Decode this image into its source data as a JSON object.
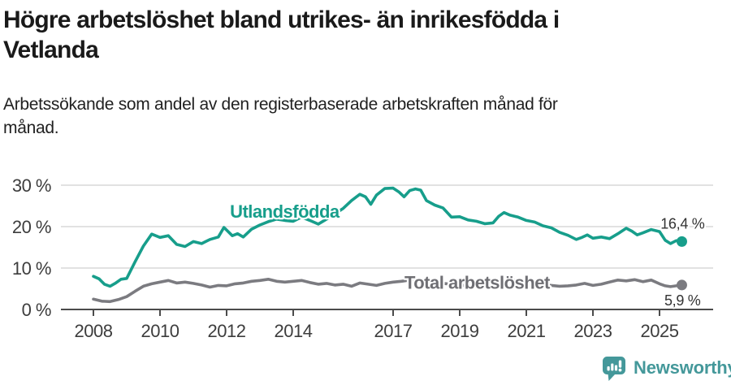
{
  "header": {
    "title_lines": {
      "l1": "Högre arbetslöshet bland utrikes- än inrikesfödda i",
      "l2": "Vetlanda"
    },
    "subtitle_lines": {
      "l1": "Arbetssökande som andel av den registerbaserade arbetskraften månad för",
      "l2": "månad."
    }
  },
  "chart_data": {
    "type": "line",
    "title": "Högre arbetslöshet bland utrikes- än inrikesfödda i Vetlanda",
    "subtitle": "Arbetssökande som andel av den registerbaserade arbetskraften månad för månad.",
    "xlabel": "",
    "ylabel": "",
    "x_axis": {
      "ticks": [
        2008,
        2010,
        2012,
        2014,
        2017,
        2019,
        2021,
        2023,
        2025
      ],
      "tick_labels": [
        "2008",
        "2010",
        "2012",
        "2014",
        "2017",
        "2019",
        "2021",
        "2023",
        "2025"
      ],
      "range": [
        2007.0,
        2026.6
      ]
    },
    "y_axis": {
      "ticks": [
        0,
        10,
        20,
        30
      ],
      "tick_labels": [
        "0 %",
        "10 %",
        "20 %",
        "30 %"
      ],
      "range": [
        0,
        33
      ],
      "grid": true
    },
    "grid_color": "#d9d9d9",
    "axis_color": "#4b4b4b",
    "tick_label_color": "#3d3d3d",
    "end_label_color": "#333333",
    "series": [
      {
        "name": "Utlandsfödda",
        "color": "#179e8b",
        "label_color": "#179e8b",
        "end_label": "16,4 %",
        "end_value": 16.4,
        "label_anchor": {
          "year": 2012.1,
          "value": 22.2
        },
        "points": [
          [
            2008.0,
            8.0
          ],
          [
            2008.17,
            7.4
          ],
          [
            2008.33,
            6.1
          ],
          [
            2008.5,
            5.6
          ],
          [
            2008.67,
            6.4
          ],
          [
            2008.83,
            7.3
          ],
          [
            2009.0,
            7.5
          ],
          [
            2009.25,
            11.5
          ],
          [
            2009.5,
            15.3
          ],
          [
            2009.75,
            18.2
          ],
          [
            2010.0,
            17.4
          ],
          [
            2010.25,
            17.8
          ],
          [
            2010.5,
            15.7
          ],
          [
            2010.75,
            15.2
          ],
          [
            2011.0,
            16.4
          ],
          [
            2011.25,
            15.9
          ],
          [
            2011.5,
            16.9
          ],
          [
            2011.75,
            17.5
          ],
          [
            2011.92,
            19.8
          ],
          [
            2012.17,
            17.8
          ],
          [
            2012.33,
            18.3
          ],
          [
            2012.5,
            17.5
          ],
          [
            2012.75,
            19.4
          ],
          [
            2013.0,
            20.4
          ],
          [
            2013.25,
            21.2
          ],
          [
            2013.5,
            21.8
          ],
          [
            2013.75,
            21.5
          ],
          [
            2014.0,
            21.3
          ],
          [
            2014.25,
            22.3
          ],
          [
            2014.5,
            21.5
          ],
          [
            2014.75,
            20.6
          ],
          [
            2015.0,
            21.8
          ],
          [
            2015.25,
            23.1
          ],
          [
            2015.5,
            24.4
          ],
          [
            2015.75,
            26.3
          ],
          [
            2016.0,
            27.8
          ],
          [
            2016.17,
            27.2
          ],
          [
            2016.33,
            25.4
          ],
          [
            2016.5,
            27.6
          ],
          [
            2016.75,
            29.2
          ],
          [
            2017.0,
            29.3
          ],
          [
            2017.17,
            28.4
          ],
          [
            2017.33,
            27.2
          ],
          [
            2017.5,
            28.7
          ],
          [
            2017.67,
            29.1
          ],
          [
            2017.83,
            28.8
          ],
          [
            2018.0,
            26.3
          ],
          [
            2018.25,
            25.2
          ],
          [
            2018.5,
            24.5
          ],
          [
            2018.75,
            22.3
          ],
          [
            2019.0,
            22.4
          ],
          [
            2019.25,
            21.6
          ],
          [
            2019.5,
            21.3
          ],
          [
            2019.75,
            20.7
          ],
          [
            2020.0,
            20.9
          ],
          [
            2020.17,
            22.5
          ],
          [
            2020.33,
            23.4
          ],
          [
            2020.5,
            22.8
          ],
          [
            2020.75,
            22.3
          ],
          [
            2021.0,
            21.5
          ],
          [
            2021.25,
            21.1
          ],
          [
            2021.5,
            20.2
          ],
          [
            2021.75,
            19.7
          ],
          [
            2022.0,
            18.6
          ],
          [
            2022.25,
            17.9
          ],
          [
            2022.5,
            16.9
          ],
          [
            2022.67,
            17.4
          ],
          [
            2022.83,
            18.0
          ],
          [
            2023.0,
            17.2
          ],
          [
            2023.25,
            17.5
          ],
          [
            2023.5,
            17.1
          ],
          [
            2023.75,
            18.3
          ],
          [
            2024.0,
            19.6
          ],
          [
            2024.17,
            18.9
          ],
          [
            2024.33,
            18.0
          ],
          [
            2024.5,
            18.5
          ],
          [
            2024.75,
            19.3
          ],
          [
            2025.0,
            18.8
          ],
          [
            2025.17,
            16.7
          ],
          [
            2025.33,
            15.9
          ],
          [
            2025.5,
            16.6
          ],
          [
            2025.67,
            16.4
          ]
        ]
      },
      {
        "name": "Total arbetslöshet",
        "color": "#7b7b80",
        "label_color": "#6f6f74",
        "end_label": "5,9 %",
        "end_value": 5.9,
        "label_anchor": {
          "year": 2017.34,
          "value": 5.0
        },
        "points": [
          [
            2008.0,
            2.5
          ],
          [
            2008.25,
            2.0
          ],
          [
            2008.5,
            1.9
          ],
          [
            2008.75,
            2.4
          ],
          [
            2009.0,
            3.1
          ],
          [
            2009.25,
            4.4
          ],
          [
            2009.5,
            5.6
          ],
          [
            2009.75,
            6.2
          ],
          [
            2010.0,
            6.6
          ],
          [
            2010.25,
            7.0
          ],
          [
            2010.5,
            6.4
          ],
          [
            2010.75,
            6.6
          ],
          [
            2011.0,
            6.3
          ],
          [
            2011.25,
            5.9
          ],
          [
            2011.5,
            5.4
          ],
          [
            2011.75,
            5.8
          ],
          [
            2012.0,
            5.7
          ],
          [
            2012.25,
            6.2
          ],
          [
            2012.5,
            6.4
          ],
          [
            2012.75,
            6.8
          ],
          [
            2013.0,
            7.0
          ],
          [
            2013.25,
            7.3
          ],
          [
            2013.5,
            6.8
          ],
          [
            2013.75,
            6.6
          ],
          [
            2014.0,
            6.8
          ],
          [
            2014.25,
            7.0
          ],
          [
            2014.5,
            6.5
          ],
          [
            2014.75,
            6.1
          ],
          [
            2015.0,
            6.3
          ],
          [
            2015.25,
            5.9
          ],
          [
            2015.5,
            6.1
          ],
          [
            2015.75,
            5.6
          ],
          [
            2016.0,
            6.4
          ],
          [
            2016.25,
            6.1
          ],
          [
            2016.5,
            5.8
          ],
          [
            2016.75,
            6.3
          ],
          [
            2017.0,
            6.6
          ],
          [
            2017.25,
            6.8
          ],
          [
            2017.5,
            7.1
          ],
          [
            2017.75,
            7.3
          ],
          [
            2018.0,
            6.8
          ],
          [
            2018.25,
            6.5
          ],
          [
            2018.5,
            6.3
          ],
          [
            2018.75,
            6.1
          ],
          [
            2019.0,
            5.9
          ],
          [
            2019.25,
            5.7
          ],
          [
            2019.5,
            5.6
          ],
          [
            2019.75,
            5.8
          ],
          [
            2020.0,
            6.1
          ],
          [
            2020.25,
            7.0
          ],
          [
            2020.5,
            7.2
          ],
          [
            2020.75,
            6.9
          ],
          [
            2021.0,
            6.6
          ],
          [
            2021.25,
            6.3
          ],
          [
            2021.5,
            6.0
          ],
          [
            2021.75,
            5.8
          ],
          [
            2022.0,
            5.6
          ],
          [
            2022.25,
            5.7
          ],
          [
            2022.5,
            5.9
          ],
          [
            2022.75,
            6.3
          ],
          [
            2023.0,
            5.8
          ],
          [
            2023.25,
            6.1
          ],
          [
            2023.5,
            6.6
          ],
          [
            2023.75,
            7.1
          ],
          [
            2024.0,
            6.9
          ],
          [
            2024.25,
            7.2
          ],
          [
            2024.5,
            6.7
          ],
          [
            2024.75,
            7.1
          ],
          [
            2025.0,
            6.2
          ],
          [
            2025.17,
            5.7
          ],
          [
            2025.33,
            5.5
          ],
          [
            2025.5,
            5.7
          ],
          [
            2025.67,
            5.9
          ]
        ]
      }
    ],
    "legend_position": "inline-labels"
  },
  "footer": {
    "brand": "Newsworthy",
    "brand_color": "#44989a"
  }
}
